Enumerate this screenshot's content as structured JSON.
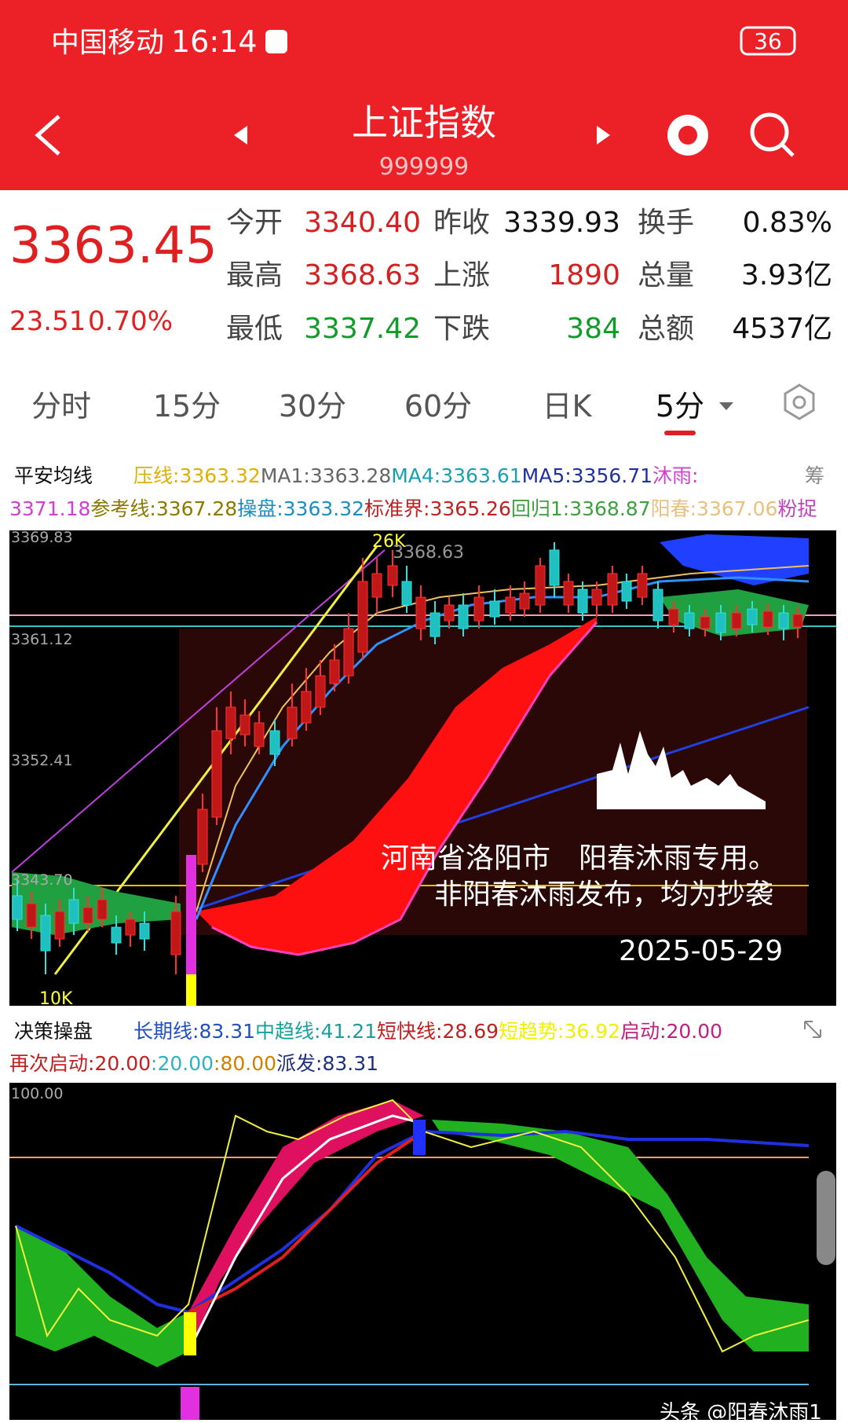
{
  "status": {
    "carrier": "中国移动",
    "time": "16:14",
    "battery": "36"
  },
  "header": {
    "title": "上证指数",
    "code": "999999"
  },
  "quote": {
    "price": "3363.45",
    "change": "23.51",
    "percent": "0.70%",
    "rows": [
      [
        {
          "label": "今开",
          "value": "3340.40",
          "color": "#d42020"
        },
        {
          "label": "昨收",
          "value": "3339.93",
          "color": "#111111"
        },
        {
          "label": "换手",
          "value": "0.83%",
          "color": "#111111"
        }
      ],
      [
        {
          "label": "最高",
          "value": "3368.63",
          "color": "#d42020"
        },
        {
          "label": "上涨",
          "value": "1890",
          "color": "#d42020"
        },
        {
          "label": "总量",
          "value": "3.93亿",
          "color": "#111111"
        }
      ],
      [
        {
          "label": "最低",
          "value": "3337.42",
          "color": "#129a2a"
        },
        {
          "label": "下跌",
          "value": "384",
          "color": "#129a2a"
        },
        {
          "label": "总额",
          "value": "4537亿",
          "color": "#111111"
        }
      ]
    ]
  },
  "tabs": [
    "分时",
    "15分",
    "30分",
    "60分",
    "日K",
    "5分"
  ],
  "main_indicator": {
    "name": "平安均线",
    "corner": "筹",
    "line1": [
      {
        "label": "压线:",
        "value": "3363.32",
        "color": "#e0b000"
      },
      {
        "label": "MA1:",
        "value": "3363.28",
        "color": "#666666"
      },
      {
        "label": "MA4:",
        "value": "3363.61",
        "color": "#1a9fb0"
      },
      {
        "label": "MA5:",
        "value": "3356.71",
        "color": "#2030a0"
      },
      {
        "label": "沐雨:",
        "color": "#d040d0"
      }
    ],
    "line2": [
      {
        "value": "3371.18",
        "color": "#d040d0"
      },
      {
        "label": "参考线:",
        "value": "3367.28",
        "color": "#8a7a00"
      },
      {
        "label": "操盘:",
        "value": "3363.32",
        "color": "#1a8fc0"
      },
      {
        "label": "标准界:",
        "value": "3365.26",
        "color": "#c02020"
      },
      {
        "label": "回归1:",
        "value": "3368.87",
        "color": "#40a040"
      },
      {
        "label": "阳春:",
        "value": "3367.06",
        "color": "#e8c080"
      },
      {
        "label": "粉捉",
        "color": "#c040c0"
      }
    ]
  },
  "main_chart": {
    "axis_labels": [
      "3369.83",
      "3361.12",
      "3352.41",
      "3343.70"
    ],
    "high_volume": "26K",
    "high_price": "3368.63",
    "low_volume": "10K",
    "watermark": [
      "河南省洛阳市　阳春沐雨专用。",
      "非阳春沐雨发布，均为抄袭"
    ],
    "date": "2025-05-29"
  },
  "sub_indicator": {
    "name": "决策操盘",
    "line1": [
      {
        "label": "长期线:",
        "value": "83.31",
        "color": "#2050c0"
      },
      {
        "label": "中趋线:",
        "value": "41.21",
        "color": "#1a9f9f"
      },
      {
        "label": "短快线:",
        "value": "28.69",
        "color": "#c02020"
      },
      {
        "label": "短趋势:",
        "value": "36.92",
        "color": "#f0f000"
      },
      {
        "label": "启动:",
        "value": "20.00",
        "color": "#c02080"
      }
    ],
    "line2": [
      {
        "label": "再次启动:",
        "value": "20.00",
        "color": "#c02020"
      },
      {
        "label": ":",
        "value": "20.00",
        "color": "#30b0c0"
      },
      {
        "label": ":",
        "value": "80.00",
        "color": "#d08000"
      },
      {
        "label": "派发:",
        "value": "83.31",
        "color": "#203080"
      }
    ]
  },
  "sub_chart": {
    "axis_label": "100.00"
  },
  "footer": "头条 @阳春沐雨1"
}
